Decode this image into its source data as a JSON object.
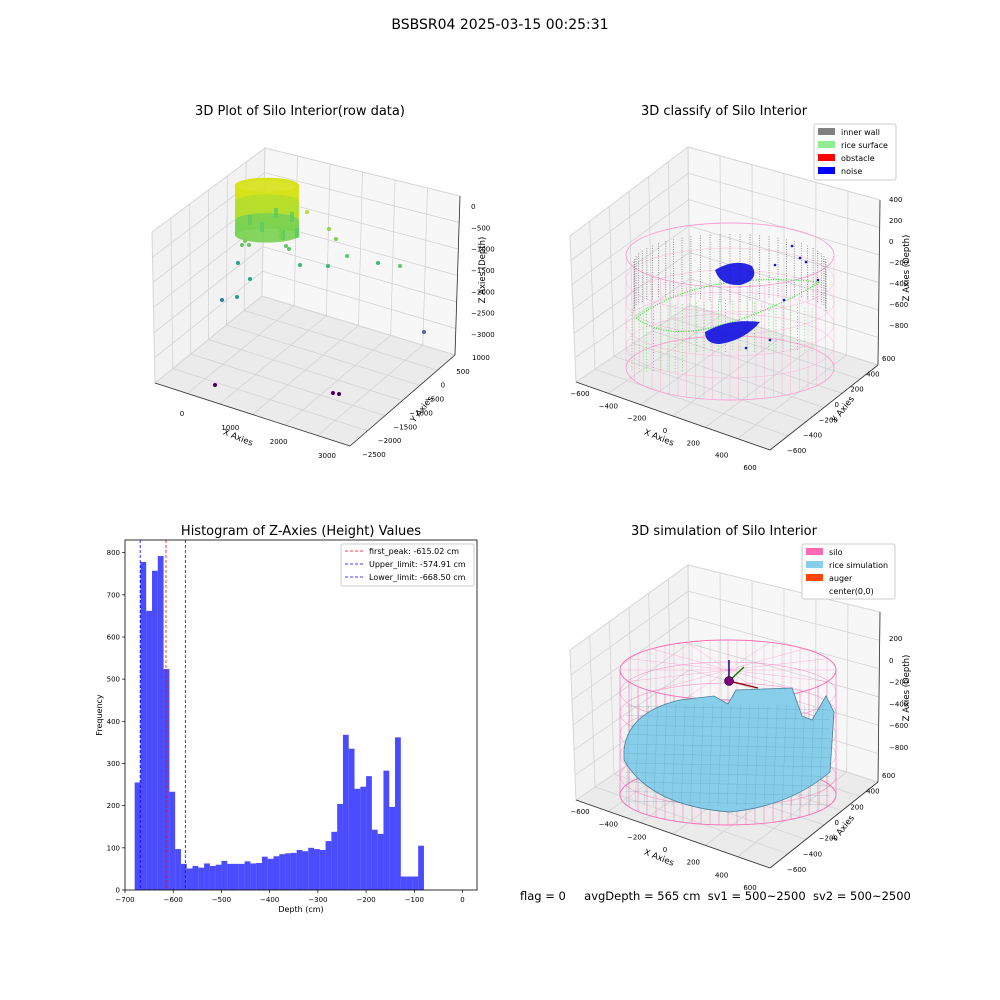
{
  "figure": {
    "title": "BSBSR04 2025-03-15 00:25:31",
    "footer": {
      "flag": "flag = 0",
      "avg_depth": "avgDepth = 565 cm",
      "sv1": "sv1 = 500~2500",
      "sv2": "sv2 = 500~2500"
    }
  },
  "chart_data": [
    {
      "type": "scatter",
      "title": "3D Plot of Silo Interior(row data)",
      "xlabel": "X Axies",
      "ylabel": "Y Axies",
      "zlabel": "Z Axies (Depth)",
      "x_ticks": [
        "0",
        "1000",
        "2000",
        "3000"
      ],
      "y_ticks": [
        "1000",
        "500",
        "0",
        "−500",
        "−1000",
        "−1500",
        "−2000",
        "−2500"
      ],
      "z_ticks": [
        "0",
        "−500",
        "−1000",
        "−1500",
        "−2000",
        "−2500",
        "−3000"
      ],
      "colors": {
        "dense": "#d7e219",
        "mid": "#5ec962",
        "low": "#21918c",
        "deep": "#440154"
      }
    },
    {
      "type": "scatter",
      "title": "3D classify of Silo Interior",
      "xlabel": "X Axies",
      "ylabel": "Y Axies",
      "zlabel": "Z Axies (Depth)",
      "legend": [
        {
          "label": "inner wall",
          "color": "#808080"
        },
        {
          "label": "rice surface",
          "color": "#90ee90"
        },
        {
          "label": "obstacle",
          "color": "#ff0000"
        },
        {
          "label": "noise",
          "color": "#0000ff"
        }
      ],
      "x_ticks": [
        "−600",
        "−400",
        "−200",
        "0",
        "200",
        "400",
        "600"
      ],
      "y_ticks": [
        "600",
        "400",
        "200",
        "0",
        "−200",
        "−400",
        "−600"
      ],
      "z_ticks": [
        "400",
        "200",
        "0",
        "−200",
        "−400",
        "−600",
        "−800"
      ]
    },
    {
      "type": "bar",
      "title": "Histogram of Z-Axies (Height) Values",
      "xlabel": "Depth (cm)",
      "ylabel": "Frequency",
      "xlim": [
        -700,
        30
      ],
      "ylim": [
        0,
        830
      ],
      "x_ticks": [
        "−700",
        "−600",
        "−500",
        "−400",
        "−300",
        "−200",
        "−100",
        "0"
      ],
      "y_ticks": [
        "0",
        "100",
        "200",
        "300",
        "400",
        "500",
        "600",
        "700",
        "800"
      ],
      "bar_color": "#0000ff",
      "bin_edges": [
        -680,
        -668,
        -656,
        -644,
        -632,
        -620,
        -608,
        -596,
        -584,
        -572,
        -560,
        -548,
        -536,
        -524,
        -512,
        -500,
        -488,
        -476,
        -464,
        -452,
        -440,
        -428,
        -416,
        -404,
        -392,
        -380,
        -368,
        -356,
        -344,
        -332,
        -320,
        -308,
        -296,
        -284,
        -272,
        -260,
        -248,
        -236,
        -224,
        -212,
        -200,
        -188,
        -176,
        -164,
        -152,
        -140,
        -128,
        -116,
        -104,
        -92,
        -80,
        -68,
        -56,
        -44,
        -32,
        -20,
        -8,
        4
      ],
      "values": [
        255,
        778,
        662,
        757,
        792,
        524,
        233,
        97,
        62,
        51,
        57,
        53,
        63,
        57,
        60,
        69,
        62,
        62,
        62,
        68,
        63,
        64,
        79,
        74,
        80,
        85,
        87,
        88,
        95,
        92,
        100,
        97,
        95,
        116,
        138,
        204,
        368,
        335,
        240,
        245,
        270,
        143,
        133,
        283,
        197,
        362,
        32,
        32,
        32,
        105,
        0,
        0,
        0,
        0,
        0,
        0,
        0
      ],
      "lines": [
        {
          "label": "first_peak: -615.02 cm",
          "x": -615.02,
          "color": "#ff0000"
        },
        {
          "label": "Upper_limit: -574.91 cm",
          "x": -574.91,
          "color": "#0000ff"
        },
        {
          "label": "Lower_limit: -668.50 cm",
          "x": -668.5,
          "color": "#0000ff"
        }
      ]
    },
    {
      "type": "area",
      "title": "3D simulation of Silo Interior",
      "xlabel": "X Axies",
      "ylabel": "Y Axies",
      "zlabel": "Z Axies (Depth)",
      "legend": [
        {
          "label": "silo",
          "color": "#ff69b4"
        },
        {
          "label": "rice simulation",
          "color": "#87ceeb"
        },
        {
          "label": "auger",
          "color": "#ff4500"
        },
        {
          "label": "center(0,0)",
          "color": "#ffffff"
        }
      ],
      "x_ticks": [
        "−600",
        "−400",
        "−200",
        "0",
        "200",
        "400",
        "600"
      ],
      "y_ticks": [
        "600",
        "400",
        "200",
        "0",
        "−200",
        "−400",
        "−600"
      ],
      "z_ticks": [
        "200",
        "0",
        "−200",
        "−400",
        "−600",
        "−800"
      ]
    }
  ]
}
